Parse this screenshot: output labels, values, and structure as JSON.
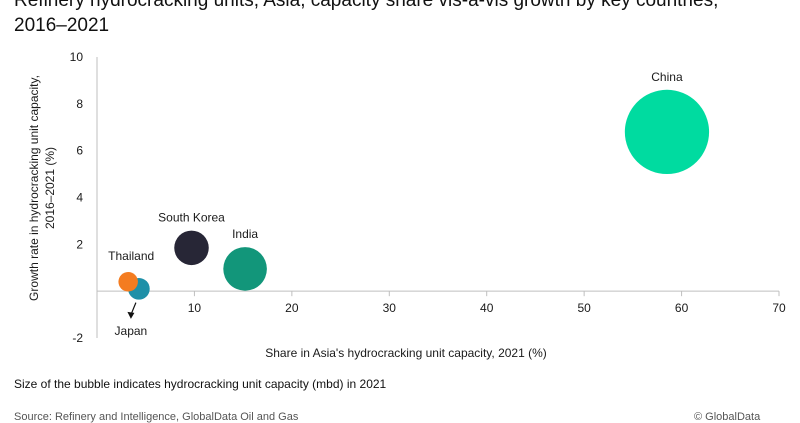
{
  "chart_data": {
    "type": "bubble",
    "title_line1": "Refinery hydrocracking units, Asia, capacity share vis-à-vis growth by key countries,",
    "title_line2": "2016–2021",
    "xlabel": "Share in Asia's hydrocracking unit capacity, 2021 (%)",
    "ylabel_line1": "Growth rate in hydrocracking unit capacity,",
    "ylabel_line2": "2016–2021 (%)",
    "xlim": [
      0,
      70
    ],
    "ylim": [
      -2,
      10
    ],
    "x_ticks": [
      10,
      20,
      30,
      40,
      50,
      60,
      70
    ],
    "y_ticks": [
      -2,
      2,
      4,
      6,
      8,
      10
    ],
    "grid": false,
    "legend": "none",
    "note": "Size of the bubble indicates hydrocracking unit capacity (mbd) in 2021",
    "points": [
      {
        "label": "China",
        "x": 58.5,
        "y": 6.8,
        "size": 5.6,
        "color": "#00DBA0"
      },
      {
        "label": "India",
        "x": 15.2,
        "y": 0.95,
        "size": 1.5,
        "color": "#12967A"
      },
      {
        "label": "South Korea",
        "x": 9.7,
        "y": 1.85,
        "size": 0.94,
        "color": "#272636"
      },
      {
        "label": "Thailand",
        "x": 3.2,
        "y": 0.4,
        "size": 0.3,
        "color": "#F47C20"
      },
      {
        "label": "Japan",
        "x": 4.3,
        "y": 0.1,
        "size": 0.37,
        "color": "#1E90A8"
      }
    ]
  },
  "source_text": "Source: Refinery and Intelligence, GlobalData Oil and Gas",
  "copyright_text": "© GlobalData"
}
